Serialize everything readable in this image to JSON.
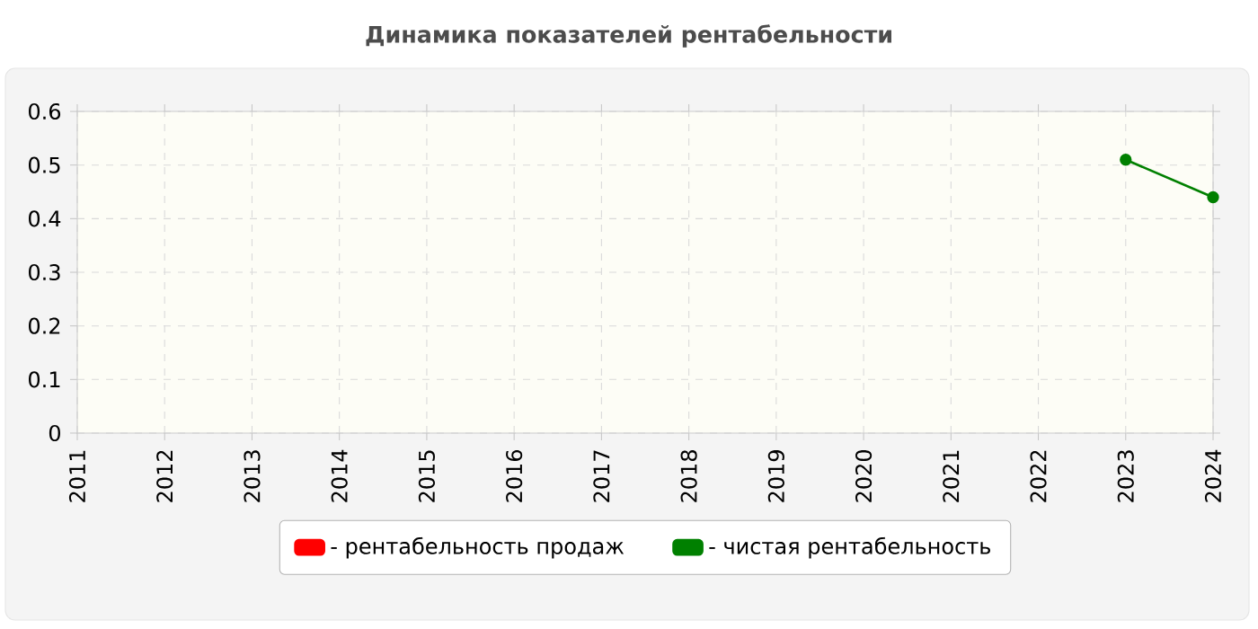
{
  "chart_data": {
    "type": "line",
    "title": "Динамика показателей рентабельности",
    "series": [
      {
        "name": "- рентабельность продаж",
        "color": "#ff0000"
      },
      {
        "name": "- чистая рентабельность",
        "color": "#008000",
        "x": [
          2023,
          2024
        ],
        "values": [
          0.51,
          0.44
        ]
      }
    ],
    "xlim": [
      2011,
      2024
    ],
    "xticks": [
      2011,
      2012,
      2013,
      2014,
      2015,
      2016,
      2017,
      2018,
      2019,
      2020,
      2021,
      2022,
      2023,
      2024
    ],
    "ylim": [
      0,
      0.6
    ],
    "yticks": [
      0,
      0.1,
      0.2,
      0.3,
      0.4,
      0.5,
      0.6
    ],
    "grid": true,
    "legend": "bottom",
    "marker": "circle",
    "line_style": "solid"
  }
}
